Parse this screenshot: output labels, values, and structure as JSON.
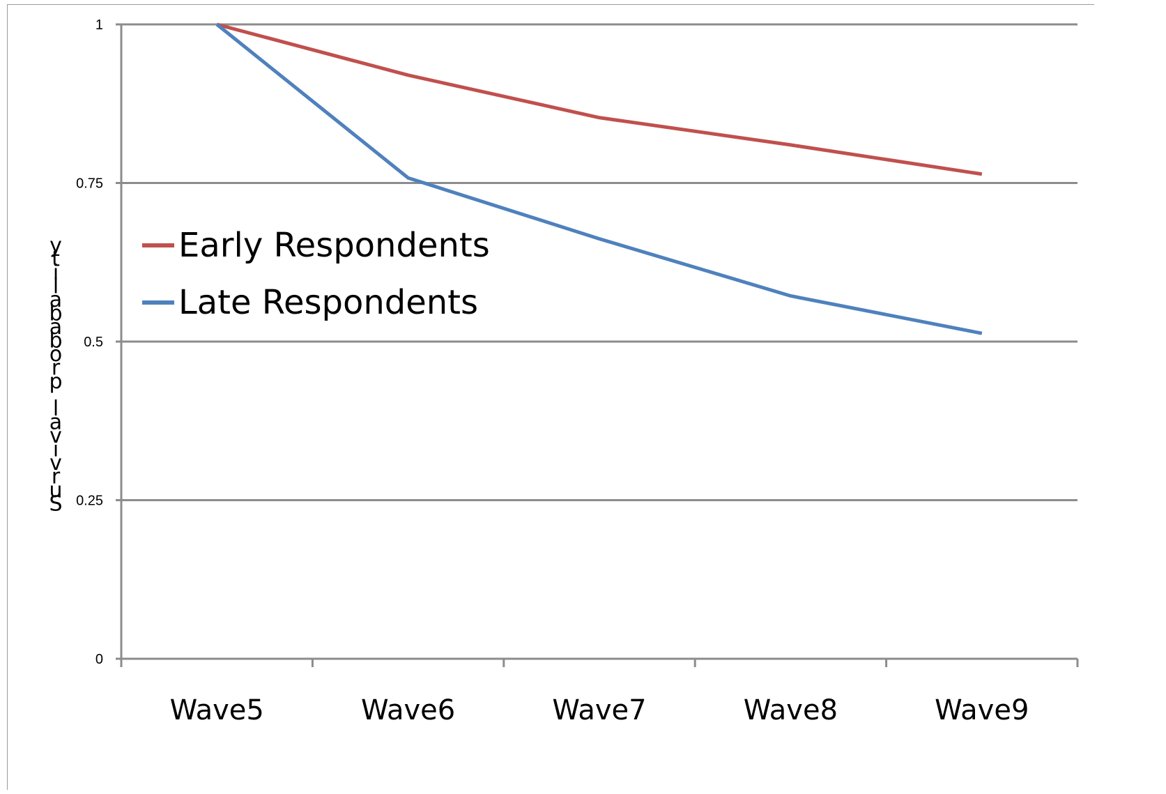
{
  "chart_data": {
    "type": "line",
    "title": "",
    "xlabel": "",
    "ylabel": "ytilababorp lavivruS",
    "categories": [
      "Wave5",
      "Wave6",
      "Wave7",
      "Wave8",
      "Wave9"
    ],
    "ylim": [
      0,
      1
    ],
    "yticks": [
      0,
      0.25,
      0.5,
      0.75,
      1
    ],
    "ytick_labels": [
      "0",
      "0.25",
      "0.5",
      "0.75",
      "1"
    ],
    "grid": true,
    "legend": "upper-left inside plot",
    "series": [
      {
        "name": "Early Respondents",
        "color": "#c0504d",
        "values": [
          1.0,
          0.92,
          0.853,
          0.81,
          0.764
        ]
      },
      {
        "name": "Late Respondents",
        "color": "#4f81bd",
        "values": [
          1.0,
          0.758,
          0.662,
          0.572,
          0.513
        ]
      }
    ]
  }
}
